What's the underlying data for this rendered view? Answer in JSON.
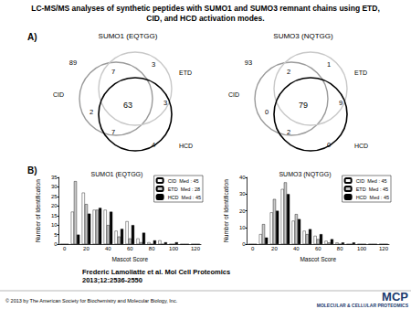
{
  "title": [
    "LC-MS/MS analyses of synthetic peptides with SUMO1 and SUMO3 remnant chains using ETD,",
    "CID, and HCD activation modes."
  ],
  "venn_panel": {
    "label": "A)",
    "diagrams": [
      {
        "title": "SUMO1 (EQTGG)",
        "sets": [
          "CID",
          "ETD",
          "HCD"
        ],
        "colors": [
          "#9a9a9a",
          "#c8c8c8",
          "#000000"
        ],
        "regions": [
          {
            "in": [],
            "count": 89
          },
          {
            "in": [
              "CID"
            ],
            "count": 2
          },
          {
            "in": [
              "ETD"
            ],
            "count": 3
          },
          {
            "in": [
              "HCD"
            ],
            "count": 4
          },
          {
            "in": [
              "CID",
              "ETD"
            ],
            "count": 7
          },
          {
            "in": [
              "CID",
              "HCD"
            ],
            "count": 7
          },
          {
            "in": [
              "ETD",
              "HCD"
            ],
            "count": 3
          },
          {
            "in": [
              "CID",
              "ETD",
              "HCD"
            ],
            "count": 63
          }
        ]
      },
      {
        "title": "SUMO3 (NQTGG)",
        "sets": [
          "CID",
          "ETD",
          "HCD"
        ],
        "colors": [
          "#9a9a9a",
          "#c8c8c8",
          "#000000"
        ],
        "regions": [
          {
            "in": [],
            "count": 93
          },
          {
            "in": [
              "CID"
            ],
            "count": 0
          },
          {
            "in": [
              "ETD"
            ],
            "count": 1
          },
          {
            "in": [
              "HCD"
            ],
            "count": 0
          },
          {
            "in": [
              "CID",
              "ETD"
            ],
            "count": 2
          },
          {
            "in": [
              "CID",
              "HCD"
            ],
            "count": 2
          },
          {
            "in": [
              "ETD",
              "HCD"
            ],
            "count": 9
          },
          {
            "in": [
              "CID",
              "ETD",
              "HCD"
            ],
            "count": 79
          }
        ]
      }
    ]
  },
  "bar_panel_label": "B)",
  "chart_data": [
    {
      "type": "bar",
      "title": "SUMO1 (EQTGG)",
      "x_label": "Mascot Score",
      "y_label": "Number of Identification",
      "categories": [
        "0",
        null,
        "20",
        null,
        "40",
        null,
        "60",
        null,
        "80",
        null,
        "100",
        null,
        "120"
      ],
      "series": [
        {
          "name": "CID",
          "median_text": "Med : 45",
          "color": "#ffffff",
          "values": [
            0,
            17,
            27,
            18,
            18,
            7,
            12,
            3,
            1,
            2,
            0,
            0,
            0
          ]
        },
        {
          "name": "ETD",
          "median_text": "Med : 28",
          "color": "#c8c8c8",
          "values": [
            0,
            33,
            21,
            18,
            10,
            4,
            3,
            1,
            0,
            0,
            0,
            0,
            0
          ]
        },
        {
          "name": "HCD",
          "median_text": "Med : 45",
          "color": "#000000",
          "values": [
            0,
            5,
            16,
            19,
            17,
            8,
            10,
            6,
            2,
            1,
            1,
            0,
            0
          ]
        }
      ],
      "ylim": [
        0,
        35
      ],
      "yticks": [
        0,
        5,
        10,
        15,
        20,
        25,
        30,
        35
      ],
      "grid": false,
      "legend": "top-right"
    },
    {
      "type": "bar",
      "title": "SUMO3 (NQTGG)",
      "x_label": "Mascot Score",
      "y_label": "Number of Identification",
      "categories": [
        "0",
        null,
        "20",
        null,
        "40",
        null,
        "60",
        null,
        "80",
        null,
        "100",
        null,
        "120"
      ],
      "series": [
        {
          "name": "CID",
          "median_text": "Med : 45",
          "color": "#ffffff",
          "values": [
            0,
            6,
            19,
            33,
            14,
            8,
            5,
            2,
            1,
            0,
            0,
            0,
            0
          ]
        },
        {
          "name": "ETD",
          "median_text": "Med : 45",
          "color": "#c8c8c8",
          "values": [
            0,
            12,
            27,
            37,
            18,
            6,
            3,
            1,
            0,
            0,
            0,
            0,
            0
          ]
        },
        {
          "name": "HCD",
          "median_text": "Med : 45",
          "color": "#000000",
          "values": [
            0,
            4,
            20,
            30,
            15,
            9,
            6,
            3,
            1,
            1,
            0,
            0,
            0
          ]
        }
      ],
      "ylim": [
        0,
        40
      ],
      "yticks": [
        0,
        10,
        20,
        30,
        40
      ],
      "grid": false,
      "legend": "top-right"
    }
  ],
  "citation": [
    "Frederic Lamoliatte et al. Mol Cell Proteomics",
    "2013;12:2536-2550"
  ],
  "footer": "© 2013 by The American Society for Biochemistry and Molecular Biology, Inc.",
  "logo": "MCP",
  "logo_subtitle": "MOLECULAR & CELLULAR PROTEOMICS"
}
